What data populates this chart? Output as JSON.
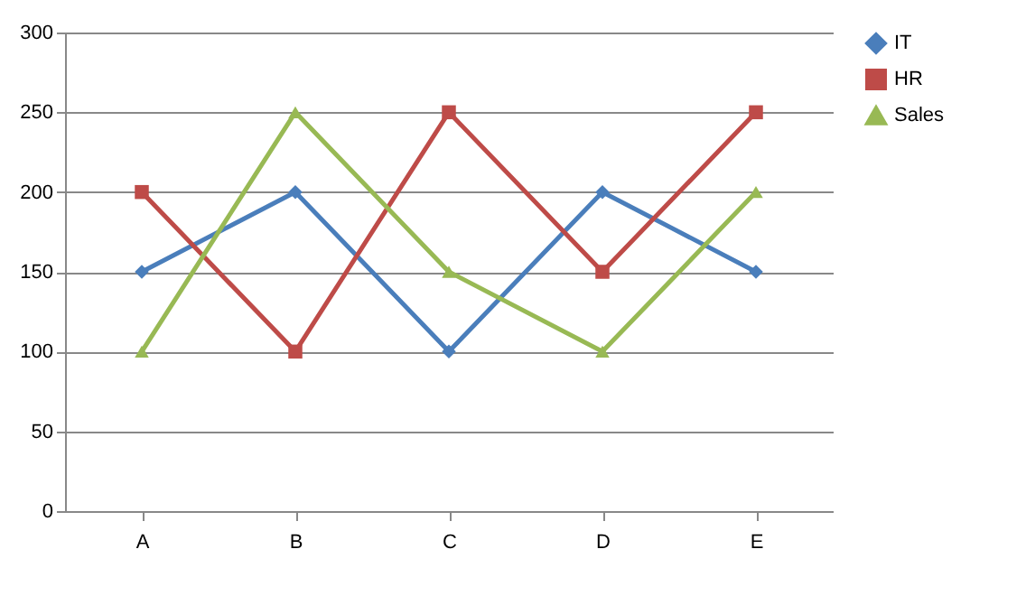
{
  "chart_data": {
    "type": "line",
    "categories": [
      "A",
      "B",
      "C",
      "D",
      "E"
    ],
    "series": [
      {
        "name": "IT",
        "color": "#4a7ebb",
        "marker": "diamond",
        "values": [
          150,
          200,
          100,
          200,
          150
        ]
      },
      {
        "name": "HR",
        "color": "#be4b48",
        "marker": "square",
        "values": [
          200,
          100,
          250,
          150,
          250
        ]
      },
      {
        "name": "Sales",
        "color": "#98b954",
        "marker": "triangle",
        "values": [
          100,
          250,
          150,
          100,
          200
        ]
      }
    ],
    "ylim": [
      0,
      300
    ],
    "yticks": [
      0,
      50,
      100,
      150,
      200,
      250,
      300
    ],
    "grid": "y",
    "legend": "right",
    "line_style": "solid"
  }
}
